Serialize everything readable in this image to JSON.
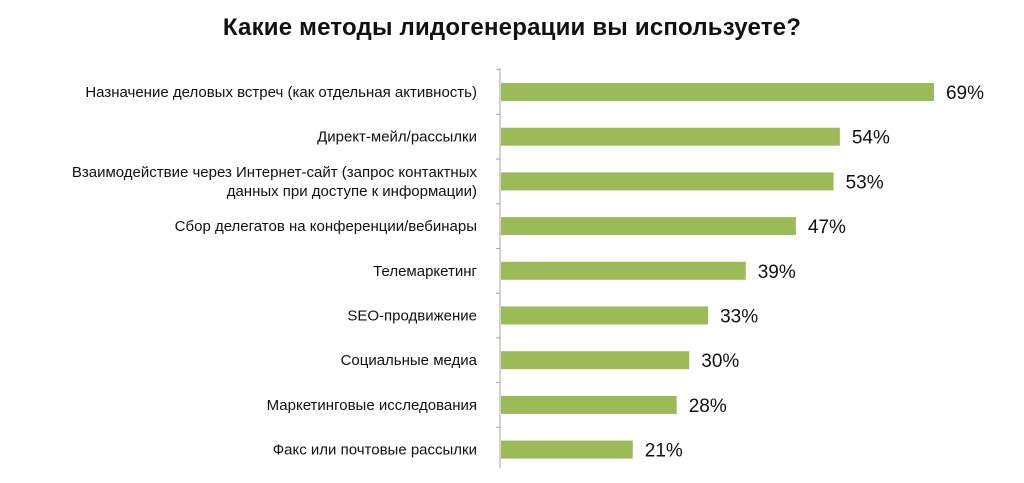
{
  "chart_data": {
    "type": "bar",
    "orientation": "horizontal",
    "title": "Какие методы лидогенерации вы используете?",
    "xlabel": "",
    "ylabel": "",
    "xlim": [
      0,
      75
    ],
    "grid": false,
    "legend": "none",
    "value_suffix": "%",
    "bar_color": "#9bbb59",
    "axis_color": "#a6a6a6",
    "categories": [
      [
        "Назначение деловых встреч (как отдельная активность)"
      ],
      [
        "Директ-мейл/рассылки"
      ],
      [
        "Взаимодействие через Интернет-сайт (запрос контактных",
        "данных при доступе к информации)"
      ],
      [
        "Сбор делегатов на конференции/вебинары"
      ],
      [
        "Телемаркетинг"
      ],
      [
        "SEO-продвижение"
      ],
      [
        "Социальные медиа"
      ],
      [
        "Маркетинговые исследования"
      ],
      [
        "Факс или почтовые рассылки"
      ]
    ],
    "values": [
      69,
      54,
      53,
      47,
      39,
      33,
      30,
      28,
      21
    ]
  }
}
